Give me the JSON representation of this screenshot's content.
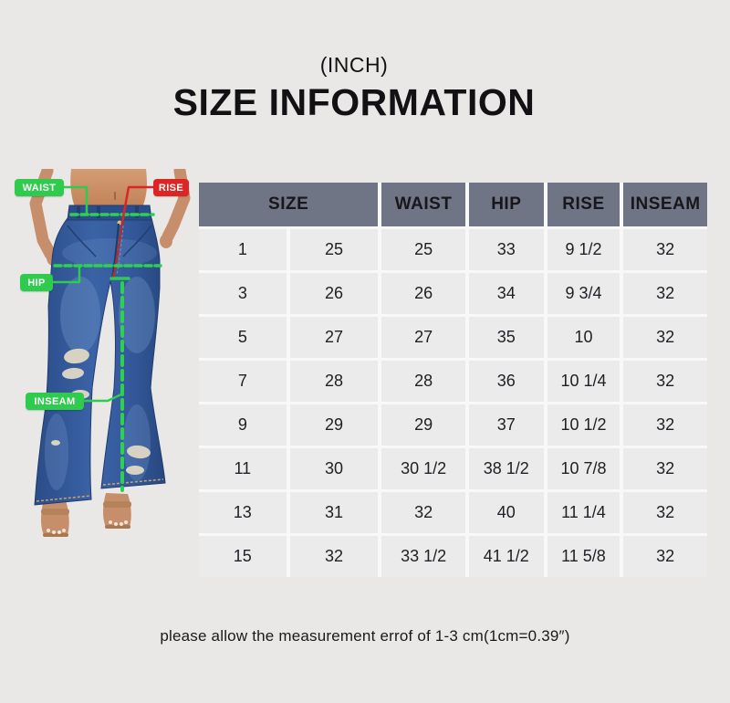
{
  "ui": {
    "unit_label": "(INCH)",
    "title": "SIZE INFORMATION",
    "note": "please allow the measurement errof of 1-3 cm(1cm=0.39″)",
    "badges": {
      "waist": "WAIST",
      "rise": "RISE",
      "hip": "HIP",
      "inseam": "INSEAM"
    }
  },
  "colors": {
    "page_bg": "#e9e8e7",
    "table_header_bg": "#6f7584",
    "table_row_bg": "#ebebec",
    "badge_green": "#2ecb4d",
    "badge_red": "#dc2626",
    "denim_blue": "#345d9f"
  },
  "chart_data": {
    "type": "table",
    "title": "SIZE INFORMATION",
    "unit": "INCH",
    "columns": [
      "SIZE",
      "WAIST",
      "HIP",
      "RISE",
      "INSEAM"
    ],
    "rows": [
      [
        "1",
        "25",
        "25",
        "33",
        "9 1/2",
        "32"
      ],
      [
        "3",
        "26",
        "26",
        "34",
        "9 3/4",
        "32"
      ],
      [
        "5",
        "27",
        "27",
        "35",
        "10",
        "32"
      ],
      [
        "7",
        "28",
        "28",
        "36",
        "10 1/4",
        "32"
      ],
      [
        "9",
        "29",
        "29",
        "37",
        "10 1/2",
        "32"
      ],
      [
        "11",
        "30",
        "30 1/2",
        "38 1/2",
        "10 7/8",
        "32"
      ],
      [
        "13",
        "31",
        "32",
        "40",
        "11 1/4",
        "32"
      ],
      [
        "15",
        "32",
        "33 1/2",
        "41 1/2",
        "11 5/8",
        "32"
      ]
    ],
    "notes": "SIZE column contains two values per row (US size and numeric waist size)"
  }
}
